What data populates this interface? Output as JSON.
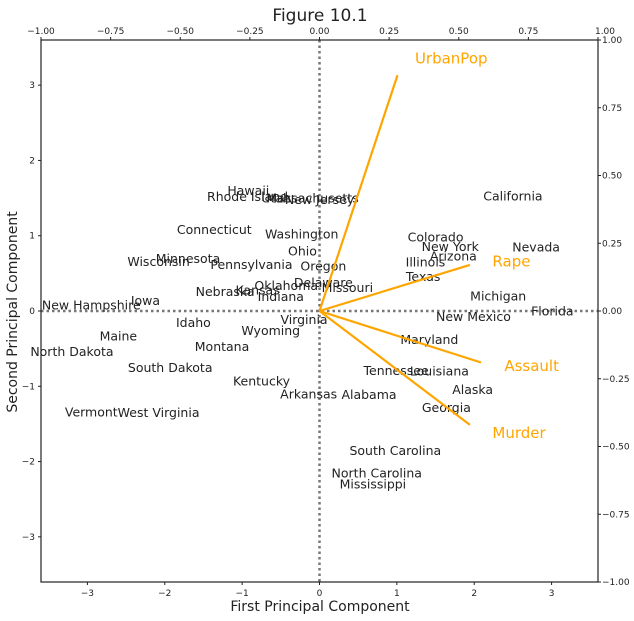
{
  "chart_data": {
    "type": "scatter",
    "title": "Figure 10.1",
    "xlabel": "First Principal Component",
    "ylabel": "Second Principal Component",
    "xlim": [
      -3.6,
      3.6
    ],
    "ylim": [
      -3.6,
      3.6
    ],
    "top_xlim": [
      -1.0,
      1.0
    ],
    "right_ylim": [
      -1.0,
      1.0
    ],
    "x_ticks": [
      -3,
      -2,
      -1,
      0,
      1,
      2,
      3
    ],
    "y_ticks": [
      -3,
      -2,
      -1,
      0,
      1,
      2,
      3
    ],
    "x_tick_labels": [
      "−3",
      "−2",
      "−1",
      "0",
      "1",
      "2",
      "3"
    ],
    "y_tick_labels": [
      "−3",
      "−2",
      "−1",
      "0",
      "1",
      "2",
      "3"
    ],
    "top_ticks": [
      -1.0,
      -0.75,
      -0.5,
      -0.25,
      0.0,
      0.25,
      0.5,
      0.75,
      1.0
    ],
    "top_tick_labels": [
      "−1.00",
      "−0.75",
      "−0.50",
      "−0.25",
      "0.00",
      "0.25",
      "0.50",
      "0.75",
      "1.00"
    ],
    "right_ticks": [
      -1.0,
      -0.75,
      -0.5,
      -0.25,
      0.0,
      0.25,
      0.5,
      0.75,
      1.0
    ],
    "right_tick_labels": [
      "−1.00",
      "−0.75",
      "−0.50",
      "−0.25",
      "0.00",
      "0.25",
      "0.50",
      "0.75",
      "1.00"
    ],
    "grid": false,
    "reference_lines": {
      "x": 0,
      "y": 0,
      "style": "dotted",
      "color": "#777777"
    },
    "loading_color": "#FFA500",
    "points": [
      {
        "label": "Alabama",
        "x": 0.64,
        "y": -1.11
      },
      {
        "label": "Alaska",
        "x": 1.98,
        "y": -1.04
      },
      {
        "label": "Arizona",
        "x": 1.73,
        "y": 0.73
      },
      {
        "label": "Arkansas",
        "x": -0.14,
        "y": -1.1
      },
      {
        "label": "California",
        "x": 2.5,
        "y": 1.53
      },
      {
        "label": "Colorado",
        "x": 1.5,
        "y": 0.98
      },
      {
        "label": "Connecticut",
        "x": -1.36,
        "y": 1.08
      },
      {
        "label": "Delaware",
        "x": 0.05,
        "y": 0.38
      },
      {
        "label": "Florida",
        "x": 3.01,
        "y": 0.0
      },
      {
        "label": "Georgia",
        "x": 1.64,
        "y": -1.28
      },
      {
        "label": "Hawaii",
        "x": -0.92,
        "y": 1.6
      },
      {
        "label": "Idaho",
        "x": -1.63,
        "y": -0.15
      },
      {
        "label": "Illinois",
        "x": 1.37,
        "y": 0.65
      },
      {
        "label": "Indiana",
        "x": -0.5,
        "y": 0.19
      },
      {
        "label": "Iowa",
        "x": -2.25,
        "y": 0.14
      },
      {
        "label": "Kansas",
        "x": -0.8,
        "y": 0.28
      },
      {
        "label": "Kentucky",
        "x": -0.75,
        "y": -0.93
      },
      {
        "label": "Louisiana",
        "x": 1.55,
        "y": -0.8
      },
      {
        "label": "Maine",
        "x": -2.6,
        "y": -0.33
      },
      {
        "label": "Maryland",
        "x": 1.42,
        "y": -0.38
      },
      {
        "label": "Massachusetts",
        "x": -0.09,
        "y": 1.5
      },
      {
        "label": "Michigan",
        "x": 2.31,
        "y": 0.2
      },
      {
        "label": "Minnesota",
        "x": -1.7,
        "y": 0.7
      },
      {
        "label": "Mississippi",
        "x": 0.69,
        "y": -2.3
      },
      {
        "label": "Missouri",
        "x": 0.36,
        "y": 0.31
      },
      {
        "label": "Montana",
        "x": -1.26,
        "y": -0.47
      },
      {
        "label": "Nebraska",
        "x": -1.22,
        "y": 0.26
      },
      {
        "label": "Nevada",
        "x": 2.8,
        "y": 0.85
      },
      {
        "label": "New Hampshire",
        "x": -2.95,
        "y": 0.08
      },
      {
        "label": "New Jersey",
        "x": 0.0,
        "y": 1.48
      },
      {
        "label": "New Mexico",
        "x": 1.99,
        "y": -0.07
      },
      {
        "label": "New York",
        "x": 1.69,
        "y": 0.86
      },
      {
        "label": "North Carolina",
        "x": 0.74,
        "y": -2.15
      },
      {
        "label": "North Dakota",
        "x": -3.2,
        "y": -0.54
      },
      {
        "label": "Ohio",
        "x": -0.22,
        "y": 0.8
      },
      {
        "label": "Oklahoma",
        "x": -0.43,
        "y": 0.34
      },
      {
        "label": "Oregon",
        "x": 0.05,
        "y": 0.6
      },
      {
        "label": "Pennsylvania",
        "x": -0.88,
        "y": 0.62
      },
      {
        "label": "Rhode Island",
        "x": -0.93,
        "y": 1.52
      },
      {
        "label": "South Carolina",
        "x": 0.98,
        "y": -1.85
      },
      {
        "label": "South Dakota",
        "x": -1.93,
        "y": -0.75
      },
      {
        "label": "Tennessee",
        "x": 0.99,
        "y": -0.79
      },
      {
        "label": "Texas",
        "x": 1.34,
        "y": 0.46
      },
      {
        "label": "Utah",
        "x": -0.56,
        "y": 1.5
      },
      {
        "label": "Vermont",
        "x": -2.95,
        "y": -1.34
      },
      {
        "label": "Virginia",
        "x": -0.2,
        "y": -0.11
      },
      {
        "label": "Washington",
        "x": -0.23,
        "y": 1.02
      },
      {
        "label": "West Virginia",
        "x": -2.08,
        "y": -1.35
      },
      {
        "label": "Wisconsin",
        "x": -2.08,
        "y": 0.66
      },
      {
        "label": "Wyoming",
        "x": -0.63,
        "y": -0.26
      }
    ],
    "loadings": [
      {
        "label": "UrbanPop",
        "x": 0.28,
        "y": 0.87
      },
      {
        "label": "Rape",
        "x": 0.54,
        "y": 0.17
      },
      {
        "label": "Assault",
        "x": 0.58,
        "y": -0.19
      },
      {
        "label": "Murder",
        "x": 0.54,
        "y": -0.42
      }
    ]
  }
}
